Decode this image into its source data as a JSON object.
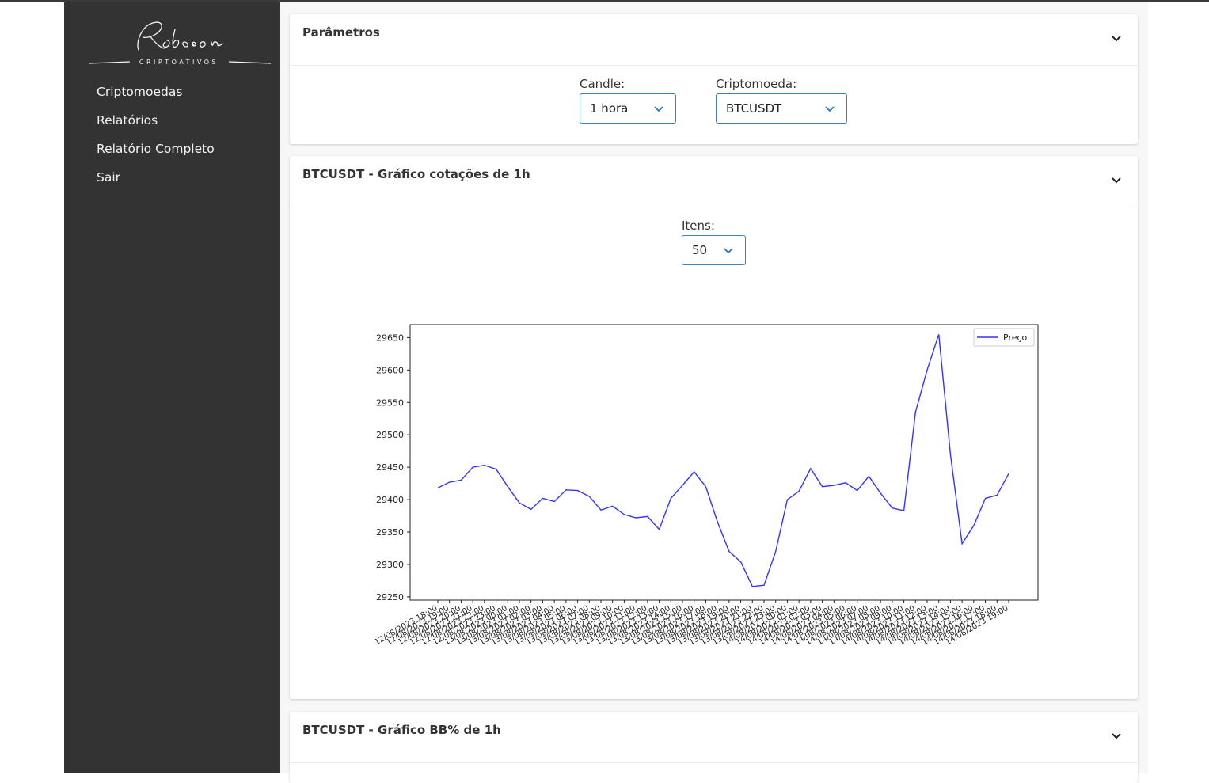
{
  "logo": {
    "name": "Robson",
    "tagline": "CRIPTOATIVOS"
  },
  "sidebar": {
    "items": [
      {
        "label": "Criptomoedas"
      },
      {
        "label": "Relatórios"
      },
      {
        "label": "Relatório Completo"
      },
      {
        "label": "Sair"
      }
    ]
  },
  "params": {
    "title": "Parâmetros",
    "candle": {
      "label": "Candle:",
      "value": "1 hora"
    },
    "crypto": {
      "label": "Criptomoeda:",
      "value": "BTCUSDT"
    }
  },
  "price_card": {
    "title": "BTCUSDT - Gráfico cotações de 1h",
    "items": {
      "label": "Itens:",
      "value": "50"
    }
  },
  "bb_card": {
    "title": "BTCUSDT - Gráfico BB% de 1h"
  },
  "colors": {
    "sidebar": "#333333",
    "accent": "#3b82c4",
    "line": "#3333ff"
  },
  "chart_data": {
    "type": "line",
    "title": "",
    "xlabel": "",
    "ylabel": "",
    "ylim": [
      29245,
      29670
    ],
    "yticks": [
      29250,
      29300,
      29350,
      29400,
      29450,
      29500,
      29550,
      29600,
      29650
    ],
    "legend": "top-right",
    "grid": false,
    "x": [
      "12/08/2023 18:00",
      "12/08/2023 19:00",
      "12/08/2023 20:00",
      "12/08/2023 21:00",
      "12/08/2023 22:00",
      "12/08/2023 23:00",
      "13/08/2023 00:00",
      "13/08/2023 01:00",
      "13/08/2023 02:00",
      "13/08/2023 03:00",
      "13/08/2023 04:00",
      "13/08/2023 05:00",
      "13/08/2023 06:00",
      "13/08/2023 07:00",
      "13/08/2023 08:00",
      "13/08/2023 09:00",
      "13/08/2023 10:00",
      "13/08/2023 11:00",
      "13/08/2023 12:00",
      "13/08/2023 13:00",
      "13/08/2023 14:00",
      "13/08/2023 15:00",
      "13/08/2023 16:00",
      "13/08/2023 17:00",
      "13/08/2023 18:00",
      "13/08/2023 19:00",
      "13/08/2023 20:00",
      "13/08/2023 21:00",
      "13/08/2023 22:00",
      "13/08/2023 23:00",
      "14/08/2023 00:00",
      "14/08/2023 01:00",
      "14/08/2023 02:00",
      "14/08/2023 03:00",
      "14/08/2023 04:00",
      "14/08/2023 05:00",
      "14/08/2023 06:00",
      "14/08/2023 07:00",
      "14/08/2023 08:00",
      "14/08/2023 09:00",
      "14/08/2023 10:00",
      "14/08/2023 11:00",
      "14/08/2023 12:00",
      "14/08/2023 13:00",
      "14/08/2023 14:00",
      "14/08/2023 15:00",
      "14/08/2023 16:00",
      "14/08/2023 17:00",
      "14/08/2023 18:00",
      "14/08/2023 19:00"
    ],
    "series": [
      {
        "name": "Preço",
        "values": [
          29418,
          29427,
          29430,
          29450,
          29453,
          29447,
          29420,
          29395,
          29385,
          29402,
          29397,
          29415,
          29414,
          29405,
          29384,
          29390,
          29377,
          29372,
          29374,
          29354,
          29402,
          29422,
          29443,
          29420,
          29366,
          29320,
          29304,
          29266,
          29268,
          29320,
          29400,
          29413,
          29448,
          29420,
          29422,
          29426,
          29414,
          29436,
          29410,
          29387,
          29383,
          29535,
          29600,
          29655,
          29470,
          29332,
          29360,
          29402,
          29407,
          29440
        ]
      }
    ]
  }
}
